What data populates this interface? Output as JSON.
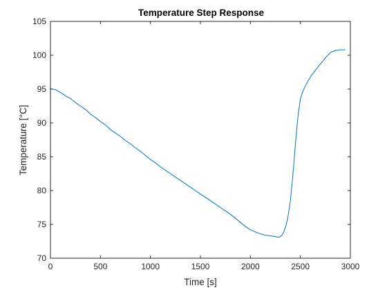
{
  "chart_data": {
    "type": "line",
    "title": "Temperature Step Response",
    "xlabel": "Time [s]",
    "ylabel": "Temperature [°C]",
    "xlim": [
      0,
      3000
    ],
    "ylim": [
      70,
      105
    ],
    "xticks": [
      0,
      500,
      1000,
      1500,
      2000,
      2500,
      3000
    ],
    "xtick_labels": [
      "0",
      "500",
      "1000",
      "1500",
      "2000",
      "2500",
      "3000"
    ],
    "yticks": [
      70,
      75,
      80,
      85,
      90,
      95,
      100,
      105
    ],
    "ytick_labels": [
      "70",
      "75",
      "80",
      "85",
      "90",
      "95",
      "100",
      "105"
    ],
    "grid": false,
    "box": true,
    "colors": {
      "series": "#0072bd",
      "axes": "#262626"
    },
    "series": [
      {
        "x": [
          0,
          50,
          100,
          150,
          200,
          250,
          300,
          350,
          400,
          450,
          500,
          550,
          600,
          650,
          700,
          750,
          800,
          850,
          900,
          950,
          1000,
          1050,
          1100,
          1150,
          1200,
          1250,
          1300,
          1350,
          1400,
          1450,
          1500,
          1550,
          1600,
          1650,
          1700,
          1750,
          1800,
          1850,
          1900,
          1950,
          2000,
          2050,
          2100,
          2150,
          2200,
          2250,
          2280,
          2300,
          2320,
          2340,
          2360,
          2380,
          2400,
          2420,
          2440,
          2460,
          2480,
          2500,
          2520,
          2550,
          2600,
          2650,
          2700,
          2750,
          2800,
          2850,
          2900,
          2950
        ],
        "values": [
          95.1,
          94.9,
          94.5,
          94.0,
          93.6,
          93.0,
          92.5,
          92.0,
          91.3,
          90.8,
          90.2,
          89.7,
          89.0,
          88.5,
          88.0,
          87.4,
          86.9,
          86.3,
          85.8,
          85.2,
          84.6,
          84.1,
          83.5,
          83.0,
          82.5,
          82.0,
          81.5,
          81.0,
          80.5,
          80.0,
          79.5,
          79.0,
          78.5,
          78.0,
          77.5,
          77.0,
          76.5,
          75.9,
          75.3,
          74.7,
          74.2,
          73.9,
          73.6,
          73.4,
          73.3,
          73.2,
          73.1,
          73.2,
          73.5,
          74.1,
          75.0,
          76.5,
          78.5,
          81.5,
          85.0,
          88.5,
          91.5,
          93.5,
          94.5,
          95.5,
          96.8,
          97.8,
          98.7,
          99.6,
          100.4,
          100.7,
          100.8,
          100.8
        ]
      }
    ]
  }
}
